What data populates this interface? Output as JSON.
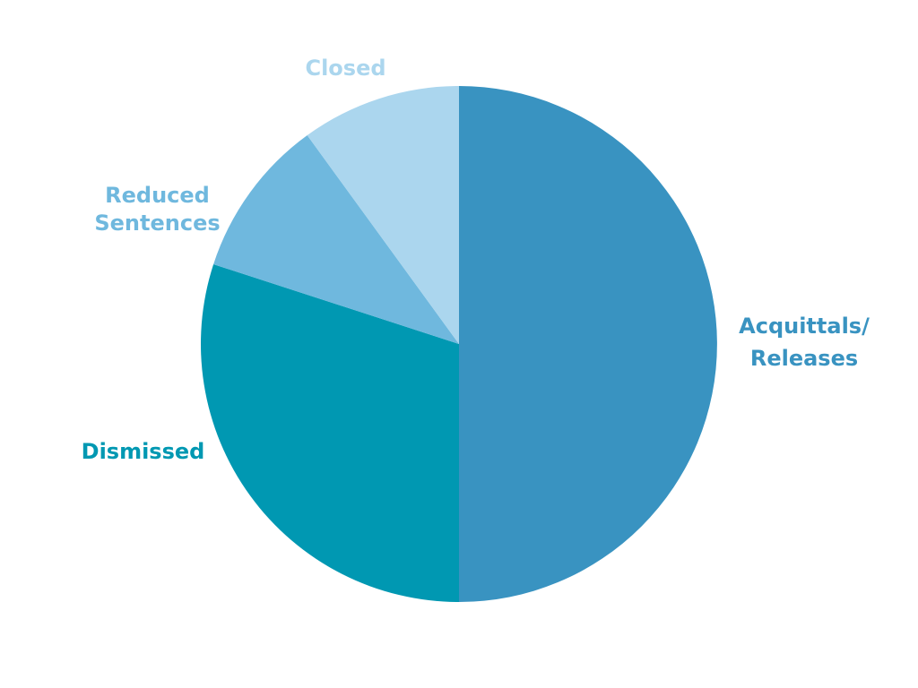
{
  "chart_data": {
    "type": "pie",
    "title": "",
    "start": "12 o'clock",
    "direction": "clockwise",
    "slices": [
      {
        "name": "acquittals",
        "label_lines": [
          "Acquittals/",
          "Releases"
        ],
        "value": 50,
        "color": "#3993C1"
      },
      {
        "name": "dismissed",
        "label_lines": [
          "Dismissed"
        ],
        "value": 30,
        "color": "#0098B2"
      },
      {
        "name": "reduced-sentences",
        "label_lines": [
          "Reduced",
          "Sentences"
        ],
        "value": 10,
        "color": "#6FB8DE"
      },
      {
        "name": "closed",
        "label_lines": [
          "Closed"
        ],
        "value": 10,
        "color": "#ABD6EE"
      }
    ]
  }
}
